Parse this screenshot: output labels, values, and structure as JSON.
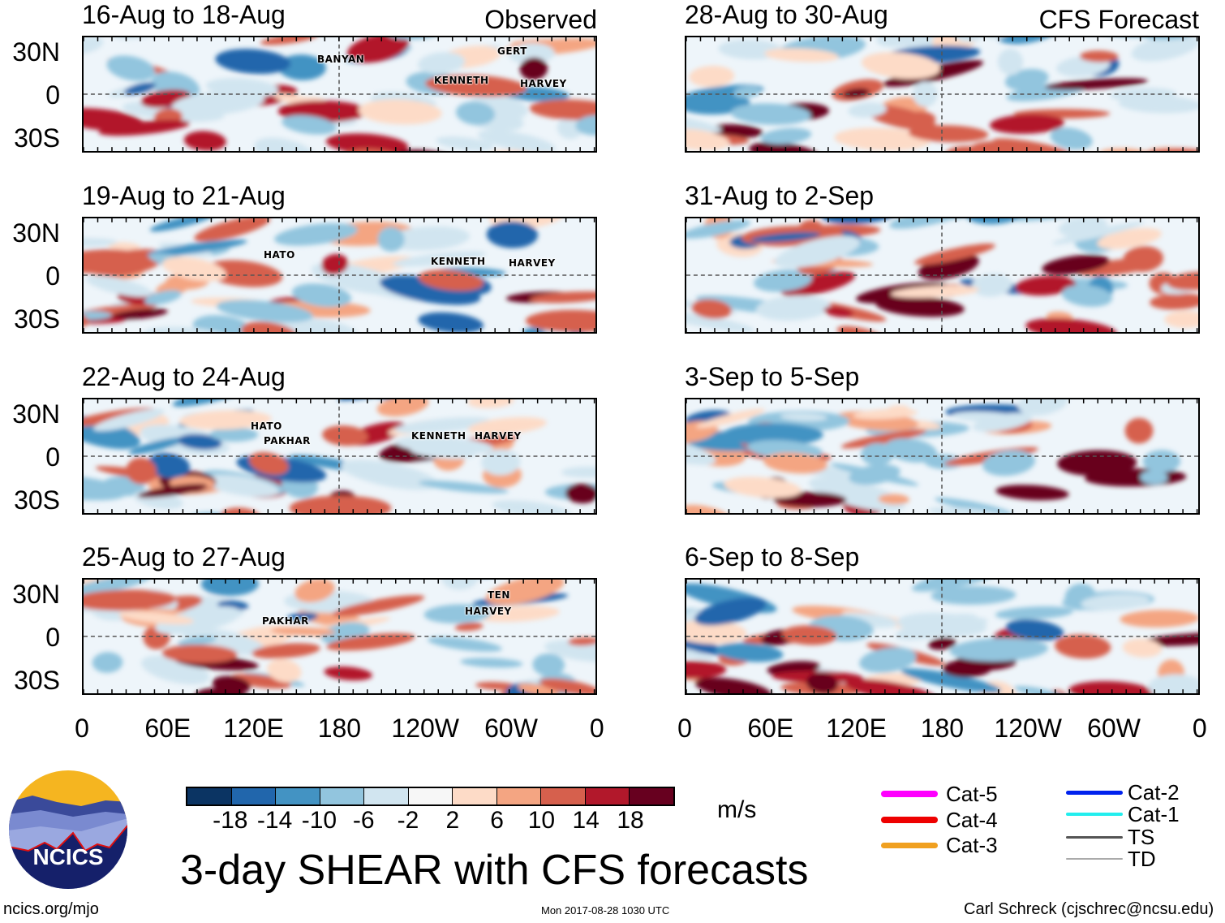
{
  "title": "3-day SHEAR with CFS forecasts",
  "left_header": "Observed",
  "right_header": "CFS Forecast",
  "panels_left": [
    {
      "title": "16-Aug to 18-Aug",
      "storms": [
        "BANYAN",
        "GERT",
        "KENNETH",
        "HARVEY"
      ]
    },
    {
      "title": "19-Aug to 21-Aug",
      "storms": [
        "HATO",
        "KENNETH",
        "HARVEY"
      ]
    },
    {
      "title": "22-Aug to 24-Aug",
      "storms": [
        "HATO",
        "PAKHAR",
        "KENNETH",
        "HARVEY"
      ]
    },
    {
      "title": "25-Aug to 27-Aug",
      "storms": [
        "PAKHAR",
        "TEN",
        "HARVEY"
      ]
    }
  ],
  "panels_right": [
    {
      "title": "28-Aug to 30-Aug"
    },
    {
      "title": "31-Aug to 2-Sep"
    },
    {
      "title": "3-Sep to 5-Sep"
    },
    {
      "title": "6-Sep to 8-Sep"
    }
  ],
  "lat_labels": [
    "30N",
    "0",
    "30S"
  ],
  "lon_labels": [
    "0",
    "60E",
    "120E",
    "180",
    "120W",
    "60W",
    "0"
  ],
  "colorbar": {
    "unit": "m/s",
    "labels": [
      "-18",
      "-14",
      "-10",
      "-6",
      "-2",
      "2",
      "6",
      "10",
      "14",
      "18"
    ],
    "colors": [
      "#0b3463",
      "#2166ac",
      "#4393c3",
      "#92c5de",
      "#d1e5f0",
      "#f7f7f7",
      "#fddbc7",
      "#f4a582",
      "#d6604d",
      "#b2182b",
      "#67001f"
    ]
  },
  "legend": [
    {
      "label": "Cat-5",
      "color": "#ff00ff"
    },
    {
      "label": "Cat-4",
      "color": "#ee0000"
    },
    {
      "label": "Cat-3",
      "color": "#f0a020"
    },
    {
      "label": "Cat-2",
      "color": "#0022ee"
    },
    {
      "label": "Cat-1",
      "color": "#22eeee"
    },
    {
      "label": "TS",
      "color": "#555555"
    },
    {
      "label": "TD",
      "color": "#aaaaaa"
    }
  ],
  "logo_text": "NCICS",
  "footer": {
    "url": "ncics.org/mjo",
    "timestamp": "Mon 2017-08-28 1030 UTC",
    "credit": "Carl Schreck (cjschrec@ncsu.edu)"
  }
}
